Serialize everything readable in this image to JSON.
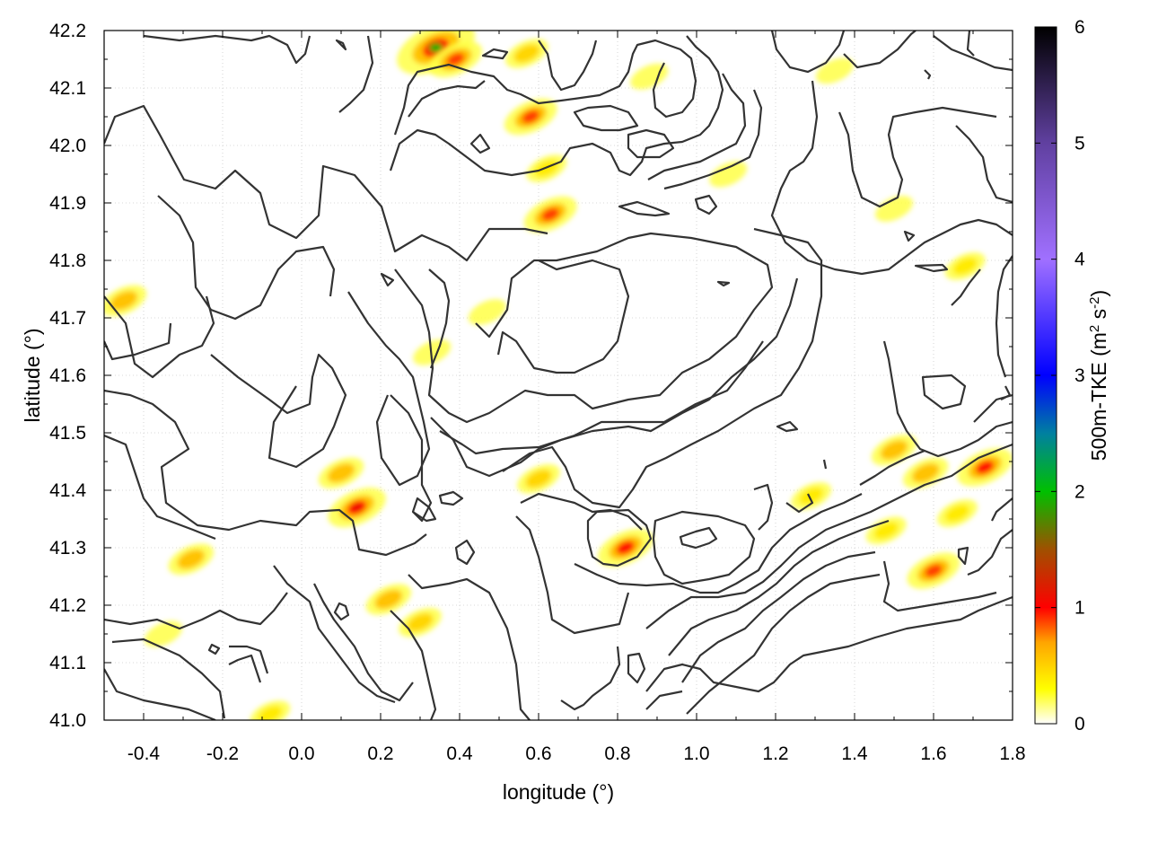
{
  "chart_data": {
    "type": "heatmap",
    "xlabel": "longitude (°)",
    "ylabel": "latitude (°)",
    "colorbar_label": "500m-TKE (m² s⁻²)",
    "colorbar_label_parts": {
      "prefix": "500m-TKE (m",
      "sup1": "2",
      "mid": " s",
      "sup2": "-2",
      "suffix": ")"
    },
    "xlim": [
      -0.5,
      1.8
    ],
    "ylim": [
      41.0,
      42.2
    ],
    "clim": [
      0,
      6
    ],
    "x_ticks": [
      -0.4,
      -0.2,
      0.0,
      0.2,
      0.4,
      0.6,
      0.8,
      1.0,
      1.2,
      1.4,
      1.6,
      1.8
    ],
    "x_tick_labels": [
      "-0.4",
      "-0.2",
      "0.0",
      "0.2",
      "0.4",
      "0.6",
      "0.8",
      "1.0",
      "1.2",
      "1.4",
      "1.6",
      "1.8"
    ],
    "y_ticks": [
      41.0,
      41.1,
      41.2,
      41.3,
      41.4,
      41.5,
      41.6,
      41.7,
      41.8,
      41.9,
      42.0,
      42.1,
      42.2
    ],
    "y_tick_labels": [
      "41.0",
      "41.1",
      "41.2",
      "41.3",
      "41.4",
      "41.5",
      "41.6",
      "41.7",
      "41.8",
      "41.9",
      "42.0",
      "42.1",
      "42.2"
    ],
    "colorbar_ticks": [
      0,
      1,
      2,
      3,
      4,
      5,
      6
    ],
    "colorbar_tick_labels": [
      "0",
      "1",
      "2",
      "3",
      "4",
      "5",
      "6"
    ],
    "colormap": [
      {
        "v": 0.0,
        "c": "#ffffff"
      },
      {
        "v": 0.3,
        "c": "#ffff00"
      },
      {
        "v": 0.7,
        "c": "#ffa500"
      },
      {
        "v": 1.0,
        "c": "#ff0000"
      },
      {
        "v": 1.5,
        "c": "#a05000"
      },
      {
        "v": 2.0,
        "c": "#00c000"
      },
      {
        "v": 2.5,
        "c": "#0080a0"
      },
      {
        "v": 3.0,
        "c": "#0000ff"
      },
      {
        "v": 4.0,
        "c": "#a070ff"
      },
      {
        "v": 5.0,
        "c": "#6040a0"
      },
      {
        "v": 6.0,
        "c": "#000000"
      }
    ],
    "grid": true,
    "tke_hotspots": [
      {
        "lon": 0.34,
        "lat": 42.17,
        "value": 1.9
      },
      {
        "lon": 0.39,
        "lat": 42.15,
        "value": 0.9
      },
      {
        "lon": 0.57,
        "lat": 42.16,
        "value": 0.5
      },
      {
        "lon": 0.58,
        "lat": 42.05,
        "value": 0.9
      },
      {
        "lon": 0.63,
        "lat": 41.88,
        "value": 0.9
      },
      {
        "lon": 0.62,
        "lat": 41.96,
        "value": 0.4
      },
      {
        "lon": 0.88,
        "lat": 42.12,
        "value": 0.3
      },
      {
        "lon": 1.35,
        "lat": 42.13,
        "value": 0.3
      },
      {
        "lon": 0.47,
        "lat": 41.71,
        "value": 0.3
      },
      {
        "lon": 0.33,
        "lat": 41.64,
        "value": 0.3
      },
      {
        "lon": 0.14,
        "lat": 41.37,
        "value": 1.1
      },
      {
        "lon": 0.1,
        "lat": 41.43,
        "value": 0.6
      },
      {
        "lon": 0.22,
        "lat": 41.21,
        "value": 0.6
      },
      {
        "lon": 0.3,
        "lat": 41.17,
        "value": 0.5
      },
      {
        "lon": -0.28,
        "lat": 41.28,
        "value": 0.6
      },
      {
        "lon": -0.45,
        "lat": 41.73,
        "value": 0.6
      },
      {
        "lon": 0.6,
        "lat": 41.42,
        "value": 0.5
      },
      {
        "lon": 0.82,
        "lat": 41.3,
        "value": 1.0
      },
      {
        "lon": 1.29,
        "lat": 41.39,
        "value": 0.4
      },
      {
        "lon": 1.5,
        "lat": 41.47,
        "value": 0.6
      },
      {
        "lon": 1.58,
        "lat": 41.43,
        "value": 0.6
      },
      {
        "lon": 1.73,
        "lat": 41.44,
        "value": 1.0
      },
      {
        "lon": 1.6,
        "lat": 41.26,
        "value": 0.9
      },
      {
        "lon": 1.66,
        "lat": 41.36,
        "value": 0.4
      },
      {
        "lon": 1.48,
        "lat": 41.33,
        "value": 0.4
      },
      {
        "lon": 1.08,
        "lat": 41.95,
        "value": 0.3
      },
      {
        "lon": 1.68,
        "lat": 41.79,
        "value": 0.4
      },
      {
        "lon": -0.08,
        "lat": 41.01,
        "value": 0.4
      },
      {
        "lon": 1.5,
        "lat": 41.89,
        "value": 0.3
      },
      {
        "lon": -0.35,
        "lat": 41.15,
        "value": 0.3
      }
    ]
  }
}
